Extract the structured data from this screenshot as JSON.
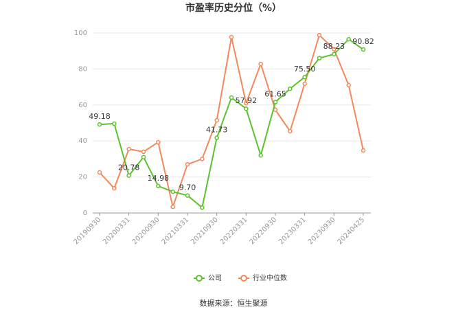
{
  "chart_data": {
    "type": "line",
    "title": "市盈率历史分位（%）",
    "source": "数据来源：恒生聚源",
    "categories": [
      "20190930",
      null,
      "20200331",
      null,
      "20200930",
      null,
      "20210331",
      null,
      "20210930",
      null,
      "20220331",
      null,
      "20220930",
      null,
      "20230331",
      null,
      "20230930",
      null,
      "20240425"
    ],
    "series": [
      {
        "name": "公司",
        "color": "#5cc22d",
        "values": [
          49.18,
          49.6,
          20.78,
          31,
          14.98,
          11.8,
          9.7,
          3,
          41.73,
          64.1,
          57.92,
          32,
          61.65,
          69,
          75.5,
          86,
          88.23,
          96.5,
          90.82
        ],
        "value_labels": [
          "49.18",
          null,
          "20.78",
          null,
          "14.98",
          null,
          "9.70",
          null,
          "41.73",
          null,
          "57.92",
          null,
          "61.65",
          null,
          "75.50",
          null,
          "88.23",
          null,
          "90.82"
        ]
      },
      {
        "name": "行业中位数",
        "color": "#f4875b",
        "values": [
          22.5,
          13.7,
          35.5,
          34,
          39.3,
          3.4,
          27,
          30,
          51.5,
          97.7,
          61,
          82.8,
          57.3,
          45.4,
          71.8,
          98.8,
          91,
          71,
          34.7
        ]
      }
    ],
    "ylim": [
      0,
      100
    ],
    "yticks": [
      0,
      20,
      40,
      60,
      80,
      100
    ],
    "grid": true,
    "legend": "bottom"
  }
}
